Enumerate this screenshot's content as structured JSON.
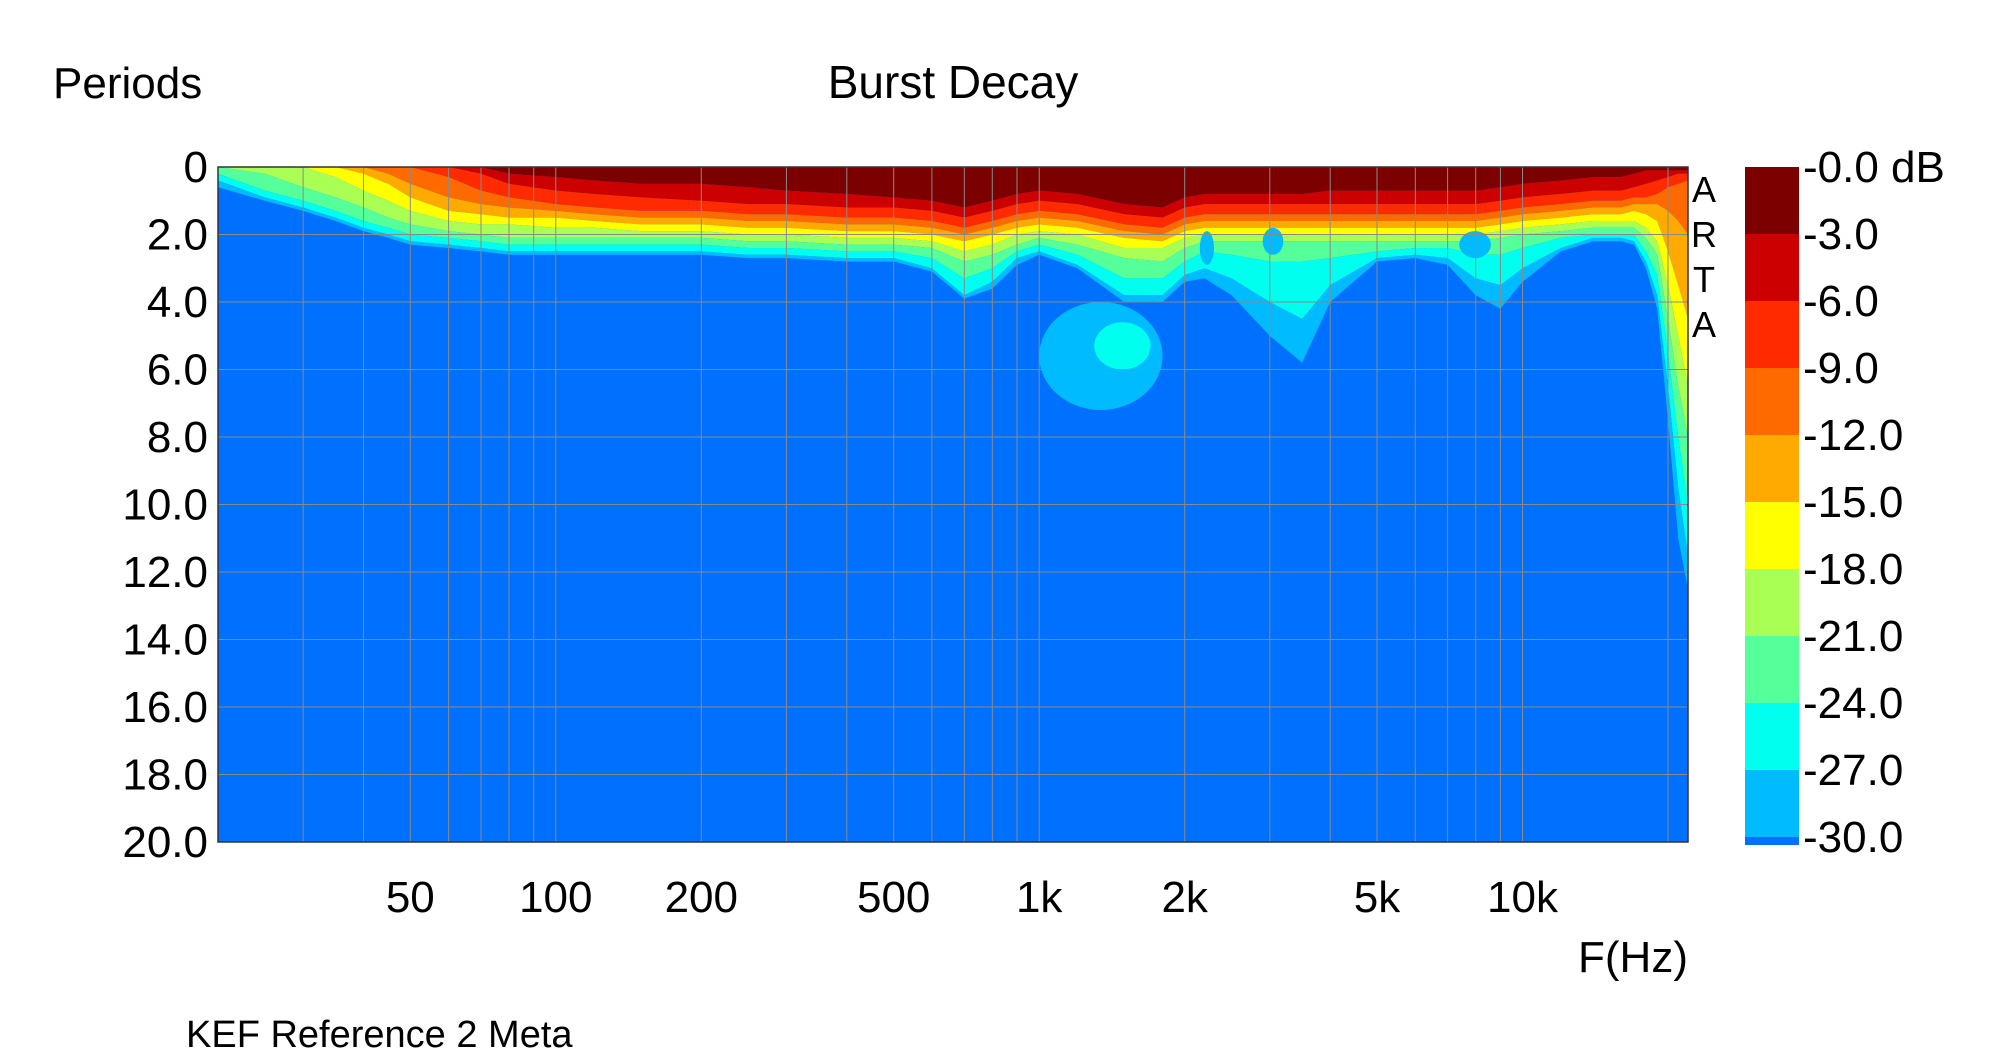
{
  "chart_data": {
    "type": "heatmap",
    "title": "Burst Decay",
    "ylabel": "Periods",
    "xlabel": "F(Hz)",
    "caption": "KEF Reference 2 Meta",
    "watermark": "ARTA",
    "x_scale": "log",
    "xlim": [
      20,
      22000
    ],
    "ylim": [
      0,
      20
    ],
    "y_inverted": true,
    "grid": true,
    "x_ticks": [
      {
        "value": 50,
        "label": "50"
      },
      {
        "value": 100,
        "label": "100"
      },
      {
        "value": 200,
        "label": "200"
      },
      {
        "value": 500,
        "label": "500"
      },
      {
        "value": 1000,
        "label": "1k"
      },
      {
        "value": 2000,
        "label": "2k"
      },
      {
        "value": 5000,
        "label": "5k"
      },
      {
        "value": 10000,
        "label": "10k"
      }
    ],
    "x_grid_values": [
      30,
      40,
      50,
      60,
      70,
      80,
      90,
      100,
      200,
      300,
      400,
      500,
      600,
      700,
      800,
      900,
      1000,
      2000,
      3000,
      4000,
      5000,
      6000,
      7000,
      8000,
      9000,
      10000,
      20000
    ],
    "y_ticks": [
      {
        "value": 0,
        "label": "0"
      },
      {
        "value": 2,
        "label": "2.0"
      },
      {
        "value": 4,
        "label": "4.0"
      },
      {
        "value": 6,
        "label": "6.0"
      },
      {
        "value": 8,
        "label": "8.0"
      },
      {
        "value": 10,
        "label": "10.0"
      },
      {
        "value": 12,
        "label": "12.0"
      },
      {
        "value": 14,
        "label": "14.0"
      },
      {
        "value": 16,
        "label": "16.0"
      },
      {
        "value": 18,
        "label": "18.0"
      },
      {
        "value": 20,
        "label": "20.0"
      }
    ],
    "colorbar": {
      "unit": "dB",
      "labels": [
        "-0.0 dB",
        "-3.0",
        "-6.0",
        "-9.0",
        "-12.0",
        "-15.0",
        "-18.0",
        "-21.0",
        "-24.0",
        "-27.0",
        "-30.0"
      ],
      "colors": [
        "#7d0000",
        "#cc0000",
        "#ff2a00",
        "#ff6a00",
        "#ffaa00",
        "#ffff00",
        "#aaff55",
        "#55ff99",
        "#00ffee",
        "#00bbff",
        "#0070ff"
      ]
    },
    "decay_contours": {
      "description": "Time (periods) at which the burst response falls to each dB level, per frequency",
      "freq": [
        20,
        25,
        30,
        35,
        40,
        45,
        50,
        60,
        70,
        80,
        100,
        120,
        150,
        200,
        250,
        300,
        400,
        500,
        600,
        700,
        800,
        900,
        1000,
        1200,
        1500,
        1800,
        2000,
        2200,
        2500,
        3000,
        3500,
        4000,
        5000,
        6000,
        7000,
        8000,
        9000,
        10000,
        12000,
        14000,
        16000,
        17000,
        18000,
        19000,
        20000,
        21000,
        22000
      ],
      "levels_db": [
        -3,
        -6,
        -9,
        -12,
        -15,
        -18,
        -21,
        -24,
        -27,
        -30
      ],
      "contours": [
        [
          0.0,
          0.0,
          0.0,
          0.0,
          0.0,
          0.0,
          0.0,
          0.0,
          0.0,
          0.2,
          0.3,
          0.4,
          0.5,
          0.5,
          0.6,
          0.7,
          0.8,
          0.9,
          1.0,
          1.2,
          1.0,
          0.8,
          0.7,
          0.8,
          1.1,
          1.2,
          0.9,
          0.8,
          0.8,
          0.8,
          0.8,
          0.7,
          0.7,
          0.7,
          0.7,
          0.7,
          0.6,
          0.5,
          0.4,
          0.3,
          0.3,
          0.2,
          0.1,
          0.1,
          0.1,
          0.1,
          0.1
        ],
        [
          0.0,
          0.0,
          0.0,
          0.0,
          0.0,
          0.0,
          0.0,
          0.0,
          0.2,
          0.5,
          0.7,
          0.8,
          0.9,
          1.0,
          1.1,
          1.1,
          1.2,
          1.2,
          1.3,
          1.5,
          1.3,
          1.1,
          1.0,
          1.1,
          1.4,
          1.5,
          1.2,
          1.1,
          1.1,
          1.1,
          1.1,
          1.1,
          1.1,
          1.1,
          1.1,
          1.1,
          1.0,
          0.9,
          0.8,
          0.7,
          0.7,
          0.6,
          0.5,
          0.4,
          0.3,
          0.2,
          0.2
        ],
        [
          0.0,
          0.0,
          0.0,
          0.0,
          0.0,
          0.0,
          0.0,
          0.3,
          0.7,
          0.9,
          1.1,
          1.2,
          1.3,
          1.3,
          1.4,
          1.4,
          1.5,
          1.5,
          1.6,
          1.8,
          1.6,
          1.4,
          1.3,
          1.4,
          1.7,
          1.8,
          1.5,
          1.4,
          1.4,
          1.4,
          1.4,
          1.4,
          1.4,
          1.4,
          1.4,
          1.4,
          1.3,
          1.2,
          1.1,
          1.0,
          1.0,
          0.9,
          0.9,
          0.8,
          0.6,
          0.5,
          0.4
        ],
        [
          0.0,
          0.0,
          0.0,
          0.0,
          0.0,
          0.2,
          0.5,
          0.9,
          1.1,
          1.2,
          1.3,
          1.4,
          1.5,
          1.5,
          1.6,
          1.6,
          1.7,
          1.7,
          1.8,
          2.0,
          1.8,
          1.6,
          1.5,
          1.6,
          1.9,
          2.0,
          1.7,
          1.6,
          1.6,
          1.6,
          1.6,
          1.6,
          1.6,
          1.6,
          1.6,
          1.6,
          1.5,
          1.4,
          1.3,
          1.2,
          1.2,
          1.1,
          1.1,
          1.1,
          1.3,
          1.6,
          2.0
        ],
        [
          0.0,
          0.0,
          0.0,
          0.0,
          0.2,
          0.5,
          0.9,
          1.3,
          1.4,
          1.5,
          1.5,
          1.6,
          1.7,
          1.7,
          1.8,
          1.8,
          1.9,
          1.9,
          2.0,
          2.2,
          2.0,
          1.8,
          1.7,
          1.8,
          2.1,
          2.2,
          1.9,
          1.8,
          1.8,
          1.8,
          1.8,
          1.8,
          1.8,
          1.8,
          1.8,
          1.8,
          1.7,
          1.6,
          1.5,
          1.4,
          1.4,
          1.3,
          1.4,
          1.6,
          2.5,
          3.5,
          4.5
        ],
        [
          0.0,
          0.0,
          0.0,
          0.3,
          0.7,
          1.0,
          1.3,
          1.6,
          1.7,
          1.7,
          1.8,
          1.8,
          1.9,
          1.9,
          2.0,
          2.0,
          2.1,
          2.1,
          2.2,
          2.5,
          2.3,
          2.0,
          1.9,
          2.0,
          2.4,
          2.4,
          2.1,
          2.0,
          2.0,
          2.0,
          2.0,
          2.0,
          2.0,
          2.0,
          2.0,
          2.0,
          1.9,
          1.8,
          1.7,
          1.6,
          1.6,
          1.6,
          1.8,
          2.2,
          3.5,
          5.0,
          6.5
        ],
        [
          0.0,
          0.2,
          0.6,
          0.9,
          1.2,
          1.5,
          1.7,
          1.9,
          2.0,
          2.1,
          2.1,
          2.1,
          2.1,
          2.1,
          2.2,
          2.2,
          2.3,
          2.3,
          2.4,
          2.8,
          2.6,
          2.3,
          2.1,
          2.3,
          2.7,
          2.8,
          2.4,
          2.2,
          2.2,
          2.2,
          2.2,
          2.2,
          2.2,
          2.2,
          2.2,
          2.2,
          2.1,
          2.0,
          1.9,
          1.8,
          1.8,
          1.8,
          2.1,
          2.6,
          4.5,
          6.5,
          8.0
        ],
        [
          0.2,
          0.7,
          1.0,
          1.3,
          1.6,
          1.8,
          2.0,
          2.1,
          2.2,
          2.3,
          2.3,
          2.3,
          2.3,
          2.3,
          2.4,
          2.4,
          2.5,
          2.5,
          2.7,
          3.3,
          3.0,
          2.5,
          2.3,
          2.6,
          3.3,
          3.3,
          2.8,
          2.5,
          2.6,
          2.8,
          2.8,
          2.7,
          2.5,
          2.4,
          2.4,
          2.6,
          2.6,
          2.4,
          2.1,
          2.0,
          2.0,
          2.0,
          2.5,
          3.2,
          5.5,
          8.0,
          10.0
        ],
        [
          0.4,
          0.9,
          1.2,
          1.5,
          1.8,
          2.0,
          2.2,
          2.3,
          2.4,
          2.5,
          2.5,
          2.5,
          2.5,
          2.5,
          2.6,
          2.6,
          2.7,
          2.7,
          3.0,
          3.8,
          3.4,
          2.7,
          2.5,
          2.9,
          3.8,
          3.8,
          3.2,
          3.0,
          3.3,
          4.0,
          4.5,
          3.5,
          2.7,
          2.6,
          2.7,
          3.3,
          3.5,
          3.0,
          2.4,
          2.1,
          2.1,
          2.2,
          2.8,
          3.8,
          6.5,
          9.5,
          11.5
        ],
        [
          0.6,
          1.0,
          1.3,
          1.6,
          1.9,
          2.1,
          2.3,
          2.4,
          2.5,
          2.6,
          2.6,
          2.6,
          2.6,
          2.6,
          2.7,
          2.7,
          2.8,
          2.8,
          3.1,
          3.9,
          3.6,
          2.9,
          2.6,
          3.0,
          4.0,
          4.0,
          3.4,
          3.3,
          3.8,
          5.0,
          5.8,
          4.0,
          2.8,
          2.7,
          2.9,
          3.8,
          4.2,
          3.4,
          2.5,
          2.2,
          2.2,
          2.3,
          3.0,
          4.2,
          7.5,
          11.0,
          12.5
        ]
      ],
      "islands": [
        {
          "level_db": -27,
          "freq_range": [
            1000,
            1800
          ],
          "periods_range": [
            4.0,
            7.2
          ]
        },
        {
          "level_db": -24,
          "freq_range": [
            1300,
            1700
          ],
          "periods_range": [
            4.6,
            6.0
          ]
        },
        {
          "level_db": -27,
          "freq_range": [
            2150,
            2300
          ],
          "periods_range": [
            1.9,
            2.9
          ]
        },
        {
          "level_db": -27,
          "freq_range": [
            2900,
            3200
          ],
          "periods_range": [
            1.8,
            2.6
          ]
        },
        {
          "level_db": -27,
          "freq_range": [
            7400,
            8600
          ],
          "periods_range": [
            1.9,
            2.7
          ]
        }
      ]
    }
  }
}
